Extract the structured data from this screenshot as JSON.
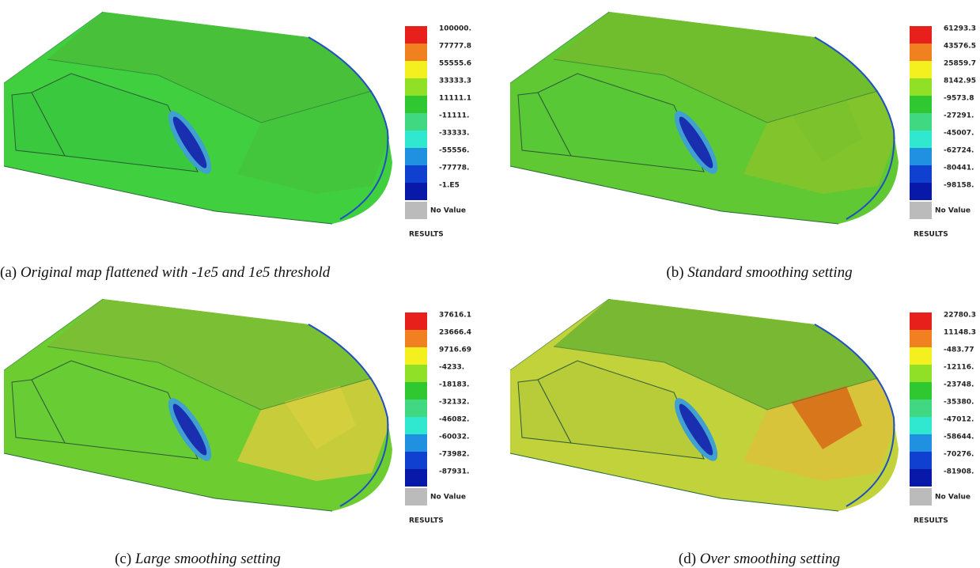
{
  "panels": [
    {
      "label": "(a)",
      "caption": "Original map flattened with -1e5 and 1e5 threshold",
      "legend": {
        "levels": [
          "100000.",
          "77777.8",
          "55555.6",
          "33333.3",
          "11111.1",
          "-11111.",
          "-33333.",
          "-55556.",
          "-77778.",
          "-1.E5"
        ],
        "no_value": "No Value",
        "title": "RESULTS"
      }
    },
    {
      "label": "(b)",
      "caption": "Standard smoothing setting",
      "legend": {
        "levels": [
          "61293.3",
          "43576.5",
          "25859.7",
          "8142.95",
          "-9573.8",
          "-27291.",
          "-45007.",
          "-62724.",
          "-80441.",
          "-98158."
        ],
        "no_value": "No Value",
        "title": "RESULTS"
      }
    },
    {
      "label": "(c)",
      "caption": "Large smoothing setting",
      "legend": {
        "levels": [
          "37616.1",
          "23666.4",
          "9716.69",
          "-4233.",
          "-18183.",
          "-32132.",
          "-46082.",
          "-60032.",
          "-73982.",
          "-87931."
        ],
        "no_value": "No Value",
        "title": "RESULTS"
      }
    },
    {
      "label": "(d)",
      "caption": "Over smoothing setting",
      "legend": {
        "levels": [
          "22780.3",
          "11148.3",
          "-483.77",
          "-12116.",
          "-23748.",
          "-35380.",
          "-47012.",
          "-58644.",
          "-70276.",
          "-81908."
        ],
        "no_value": "No Value",
        "title": "RESULTS"
      }
    }
  ]
}
